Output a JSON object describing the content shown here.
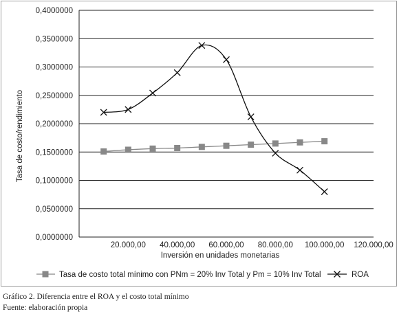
{
  "chart_data": {
    "type": "line",
    "ylabel": "Tasa de costo/rendimiento",
    "xlabel": "Inversión en unidades monetarias",
    "ylim": [
      0,
      0.4
    ],
    "xlim": [
      0,
      120000
    ],
    "y_ticks": [
      0,
      0.05,
      0.1,
      0.15,
      0.2,
      0.25,
      0.3,
      0.35,
      0.4
    ],
    "y_tick_labels": [
      "0,0000000",
      "0,0500000",
      "0,1000000",
      "0,1500000",
      "0,2000000",
      "0,2500000",
      "0,3000000",
      "0,3500000",
      "0,4000000"
    ],
    "x_ticks": [
      20000,
      40000,
      60000,
      80000,
      100000,
      120000
    ],
    "x_tick_labels": [
      "20.000,00",
      "40.000,00",
      "60.000,00",
      "80.000,00",
      "100.000,00",
      "120.000,00"
    ],
    "grid": "horizontal",
    "legend_position": "bottom",
    "series": [
      {
        "name": "Tasa de costo total mínimo con PNm = 20% Inv Total y Pm = 10% Inv Total",
        "marker": "square",
        "color": "#888888",
        "x": [
          10000,
          20000,
          30000,
          40000,
          50000,
          60000,
          70000,
          80000,
          90000,
          100000
        ],
        "values": [
          0.151,
          0.154,
          0.156,
          0.157,
          0.159,
          0.161,
          0.163,
          0.165,
          0.167,
          0.169
        ]
      },
      {
        "name": "ROA",
        "marker": "x",
        "color": "#111111",
        "x": [
          10000,
          20000,
          30000,
          40000,
          50000,
          60000,
          70000,
          80000,
          90000,
          100000
        ],
        "values": [
          0.22,
          0.225,
          0.254,
          0.29,
          0.338,
          0.313,
          0.212,
          0.148,
          0.118,
          0.08
        ]
      }
    ]
  },
  "captions": {
    "figure": "Gráfico 2. Diferencia entre el ROA y el costo total mínimo",
    "source": "Fuente: elaboración propia"
  }
}
